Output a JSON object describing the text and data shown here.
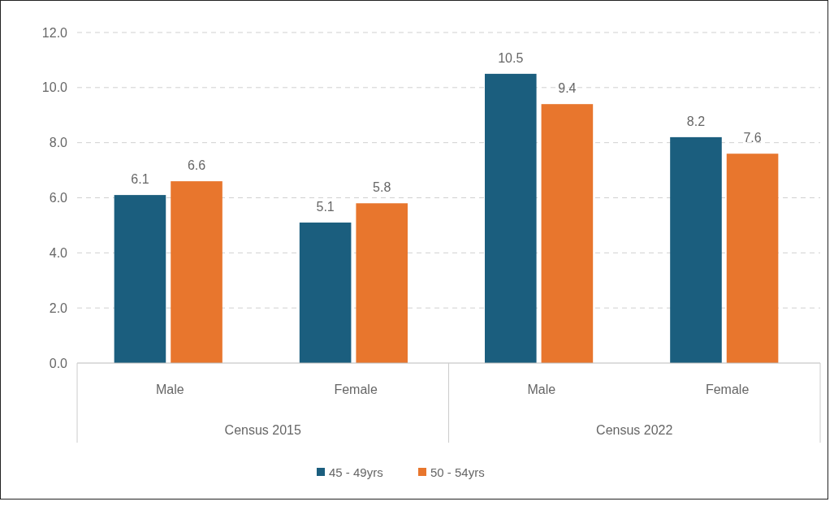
{
  "chart_data": {
    "type": "bar",
    "categories": [
      "Male",
      "Female",
      "Male",
      "Female"
    ],
    "series": [
      {
        "name": "45 - 49yrs",
        "color": "#1b5e7e",
        "values": [
          6.1,
          5.1,
          10.5,
          8.2
        ]
      },
      {
        "name": "50 - 54yrs",
        "color": "#e8762d",
        "values": [
          6.6,
          5.8,
          9.4,
          7.6
        ]
      }
    ],
    "ylim": [
      0,
      12
    ],
    "yticks": [
      {
        "value": 0,
        "label": "0.0"
      },
      {
        "value": 2,
        "label": "2.0"
      },
      {
        "value": 4,
        "label": "4.0"
      },
      {
        "value": 6,
        "label": "6.0"
      },
      {
        "value": 8,
        "label": "8.0"
      },
      {
        "value": 10,
        "label": "10.0"
      },
      {
        "value": 12,
        "label": "12.0"
      }
    ],
    "grid": "y",
    "legend": "bottom",
    "data_labels": true,
    "annotations": [
      "Census 2015",
      "Census 2022"
    ]
  }
}
